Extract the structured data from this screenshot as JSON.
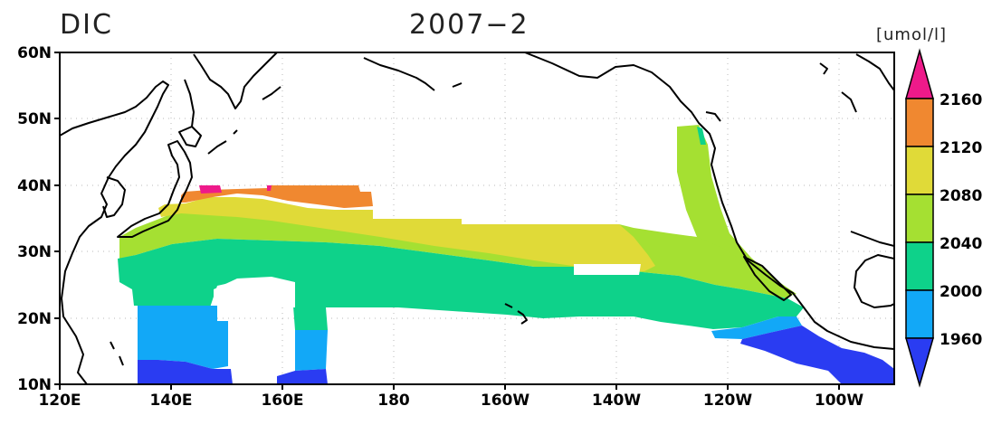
{
  "map": {
    "variable": "DIC",
    "date": "2007−2",
    "unit": "[umol/l]",
    "lat_labels": [
      "60N",
      "50N",
      "40N",
      "30N",
      "20N",
      "10N"
    ],
    "lon_labels": [
      "120E",
      "140E",
      "160E",
      "180",
      "160W",
      "140W",
      "120W",
      "100W"
    ],
    "lon_range": [
      120,
      270
    ],
    "lat_range": [
      10,
      60
    ]
  },
  "colorbar": {
    "labels": [
      "2160",
      "2120",
      "2080",
      "2040",
      "2000",
      "1960"
    ],
    "levels": [
      1960,
      2000,
      2040,
      2080,
      2120,
      2160
    ],
    "colors": {
      "below_1960": "#2a3cf2",
      "1960_2000": "#12a8f7",
      "2000_2040": "#0ed28a",
      "2040_2080": "#a5e032",
      "2080_2120": "#e0da38",
      "2120_2160": "#f08830",
      "above_2160": "#ee1a8a"
    }
  }
}
